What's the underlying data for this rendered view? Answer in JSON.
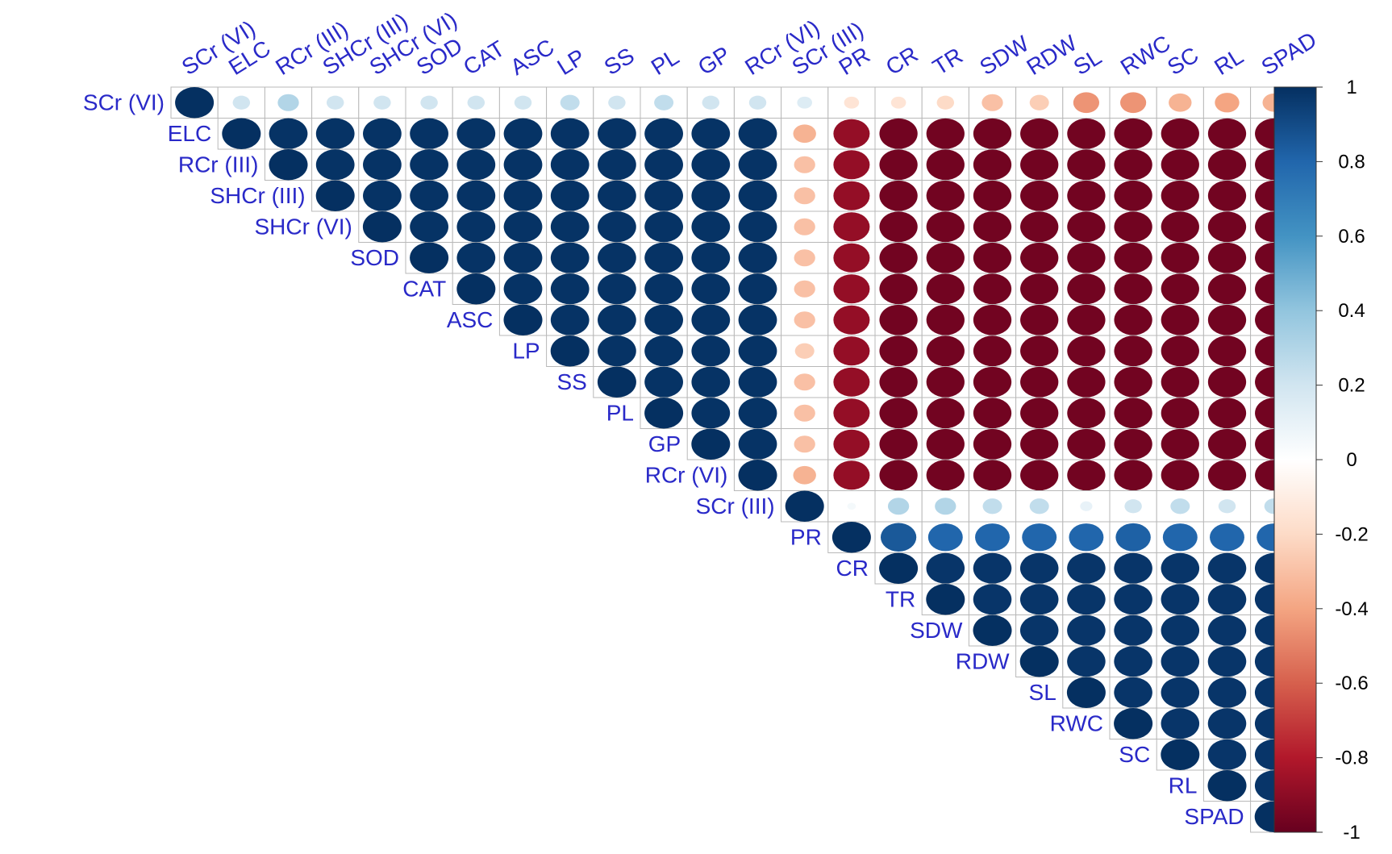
{
  "chart_data": {
    "type": "heatmap",
    "style": "corrplot circles, upper triangle",
    "variables": [
      "SCr (VI)",
      "ELC",
      "RCr (III)",
      "SHCr (III)",
      "SHCr (VI)",
      "SOD",
      "CAT",
      "ASC",
      "LP",
      "SS",
      "PL",
      "GP",
      "RCr (VI)",
      "SCr (III)",
      "PR",
      "CR",
      "TR",
      "SDW",
      "RDW",
      "SL",
      "RWC",
      "SC",
      "RL",
      "SPAD"
    ],
    "correlations": [
      [
        1,
        0.2,
        0.3,
        0.2,
        0.2,
        0.2,
        0.2,
        0.2,
        0.25,
        0.2,
        0.25,
        0.2,
        0.2,
        0.15,
        -0.15,
        -0.15,
        -0.2,
        -0.3,
        -0.25,
        -0.45,
        -0.45,
        -0.35,
        -0.4,
        -0.35
      ],
      [
        null,
        1,
        0.99,
        0.99,
        0.99,
        0.99,
        0.99,
        0.99,
        0.99,
        0.99,
        0.99,
        0.99,
        0.99,
        -0.35,
        -0.88,
        -0.97,
        -0.97,
        -0.97,
        -0.97,
        -0.97,
        -0.97,
        -0.97,
        -0.97,
        -0.97
      ],
      [
        null,
        null,
        1,
        0.99,
        0.99,
        0.99,
        0.99,
        0.99,
        0.99,
        0.99,
        0.99,
        0.99,
        0.99,
        -0.3,
        -0.88,
        -0.97,
        -0.97,
        -0.97,
        -0.97,
        -0.97,
        -0.97,
        -0.97,
        -0.97,
        -0.97
      ],
      [
        null,
        null,
        null,
        1,
        0.99,
        0.99,
        0.99,
        0.99,
        0.99,
        0.99,
        0.99,
        0.99,
        0.99,
        -0.3,
        -0.88,
        -0.97,
        -0.97,
        -0.97,
        -0.97,
        -0.97,
        -0.97,
        -0.97,
        -0.97,
        -0.97
      ],
      [
        null,
        null,
        null,
        null,
        1,
        0.99,
        0.99,
        0.99,
        0.99,
        0.99,
        0.99,
        0.99,
        0.99,
        -0.3,
        -0.88,
        -0.97,
        -0.97,
        -0.97,
        -0.97,
        -0.97,
        -0.97,
        -0.97,
        -0.97,
        -0.97
      ],
      [
        null,
        null,
        null,
        null,
        null,
        1,
        0.99,
        0.99,
        0.99,
        0.99,
        0.99,
        0.99,
        0.99,
        -0.3,
        -0.88,
        -0.97,
        -0.97,
        -0.97,
        -0.97,
        -0.97,
        -0.97,
        -0.97,
        -0.97,
        -0.97
      ],
      [
        null,
        null,
        null,
        null,
        null,
        null,
        1,
        0.99,
        0.99,
        0.99,
        0.99,
        0.99,
        0.99,
        -0.3,
        -0.88,
        -0.97,
        -0.97,
        -0.97,
        -0.97,
        -0.97,
        -0.97,
        -0.97,
        -0.97,
        -0.97
      ],
      [
        null,
        null,
        null,
        null,
        null,
        null,
        null,
        1,
        0.99,
        0.99,
        0.99,
        0.99,
        0.99,
        -0.3,
        -0.88,
        -0.97,
        -0.97,
        -0.97,
        -0.97,
        -0.97,
        -0.97,
        -0.97,
        -0.97,
        -0.97
      ],
      [
        null,
        null,
        null,
        null,
        null,
        null,
        null,
        null,
        1,
        0.99,
        0.99,
        0.99,
        0.99,
        -0.25,
        -0.88,
        -0.97,
        -0.97,
        -0.97,
        -0.97,
        -0.97,
        -0.97,
        -0.97,
        -0.97,
        -0.97
      ],
      [
        null,
        null,
        null,
        null,
        null,
        null,
        null,
        null,
        null,
        1,
        0.99,
        0.99,
        0.99,
        -0.3,
        -0.88,
        -0.97,
        -0.97,
        -0.97,
        -0.97,
        -0.97,
        -0.97,
        -0.97,
        -0.97,
        -0.97
      ],
      [
        null,
        null,
        null,
        null,
        null,
        null,
        null,
        null,
        null,
        null,
        1,
        0.99,
        0.99,
        -0.3,
        -0.88,
        -0.97,
        -0.97,
        -0.97,
        -0.97,
        -0.97,
        -0.97,
        -0.97,
        -0.97,
        -0.97
      ],
      [
        null,
        null,
        null,
        null,
        null,
        null,
        null,
        null,
        null,
        null,
        null,
        1,
        0.99,
        -0.3,
        -0.88,
        -0.97,
        -0.97,
        -0.97,
        -0.97,
        -0.97,
        -0.97,
        -0.97,
        -0.97,
        -0.97
      ],
      [
        null,
        null,
        null,
        null,
        null,
        null,
        null,
        null,
        null,
        null,
        null,
        null,
        1,
        -0.35,
        -0.88,
        -0.97,
        -0.97,
        -0.97,
        -0.97,
        -0.97,
        -0.97,
        -0.97,
        -0.97,
        -0.97
      ],
      [
        null,
        null,
        null,
        null,
        null,
        null,
        null,
        null,
        null,
        null,
        null,
        null,
        null,
        1,
        0.05,
        0.3,
        0.3,
        0.25,
        0.25,
        0.1,
        0.2,
        0.25,
        0.2,
        0.25
      ],
      [
        null,
        null,
        null,
        null,
        null,
        null,
        null,
        null,
        null,
        null,
        null,
        null,
        null,
        null,
        1,
        0.85,
        0.8,
        0.8,
        0.8,
        0.8,
        0.82,
        0.8,
        0.8,
        0.8
      ],
      [
        null,
        null,
        null,
        null,
        null,
        null,
        null,
        null,
        null,
        null,
        null,
        null,
        null,
        null,
        null,
        1,
        0.98,
        0.98,
        0.98,
        0.98,
        0.98,
        0.98,
        0.98,
        0.98
      ],
      [
        null,
        null,
        null,
        null,
        null,
        null,
        null,
        null,
        null,
        null,
        null,
        null,
        null,
        null,
        null,
        null,
        1,
        0.98,
        0.98,
        0.98,
        0.98,
        0.98,
        0.98,
        0.98
      ],
      [
        null,
        null,
        null,
        null,
        null,
        null,
        null,
        null,
        null,
        null,
        null,
        null,
        null,
        null,
        null,
        null,
        null,
        1,
        0.98,
        0.98,
        0.98,
        0.98,
        0.98,
        0.98
      ],
      [
        null,
        null,
        null,
        null,
        null,
        null,
        null,
        null,
        null,
        null,
        null,
        null,
        null,
        null,
        null,
        null,
        null,
        null,
        1,
        0.98,
        0.98,
        0.98,
        0.98,
        0.98
      ],
      [
        null,
        null,
        null,
        null,
        null,
        null,
        null,
        null,
        null,
        null,
        null,
        null,
        null,
        null,
        null,
        null,
        null,
        null,
        null,
        1,
        0.98,
        0.98,
        0.98,
        0.98
      ],
      [
        null,
        null,
        null,
        null,
        null,
        null,
        null,
        null,
        null,
        null,
        null,
        null,
        null,
        null,
        null,
        null,
        null,
        null,
        null,
        null,
        1,
        0.98,
        0.98,
        0.98
      ],
      [
        null,
        null,
        null,
        null,
        null,
        null,
        null,
        null,
        null,
        null,
        null,
        null,
        null,
        null,
        null,
        null,
        null,
        null,
        null,
        null,
        null,
        1,
        0.98,
        0.98
      ],
      [
        null,
        null,
        null,
        null,
        null,
        null,
        null,
        null,
        null,
        null,
        null,
        null,
        null,
        null,
        null,
        null,
        null,
        null,
        null,
        null,
        null,
        null,
        1,
        0.98
      ],
      [
        null,
        null,
        null,
        null,
        null,
        null,
        null,
        null,
        null,
        null,
        null,
        null,
        null,
        null,
        null,
        null,
        null,
        null,
        null,
        null,
        null,
        null,
        null,
        1
      ]
    ],
    "colorbar": {
      "range": [
        -1,
        1
      ],
      "ticks": [
        "1",
        "0.8",
        "0.6",
        "0.4",
        "0.2",
        "0",
        "-0.2",
        "-0.4",
        "-0.6",
        "-0.8",
        "-1"
      ],
      "tick_values": [
        1,
        0.8,
        0.6,
        0.4,
        0.2,
        0,
        -0.2,
        -0.4,
        -0.6,
        -0.8,
        -1
      ],
      "colors": {
        "-1": "#67001f",
        "-0.8": "#b2182b",
        "-0.6": "#d6604d",
        "-0.4": "#f4a582",
        "-0.2": "#fddbc7",
        "0": "#ffffff",
        "0.2": "#d1e5f0",
        "0.4": "#92c5de",
        "0.6": "#4393c3",
        "0.8": "#2166ac",
        "1": "#053061"
      }
    },
    "title": "",
    "xlabel": "",
    "ylabel": "",
    "grid": true,
    "legend_placement": "right"
  }
}
